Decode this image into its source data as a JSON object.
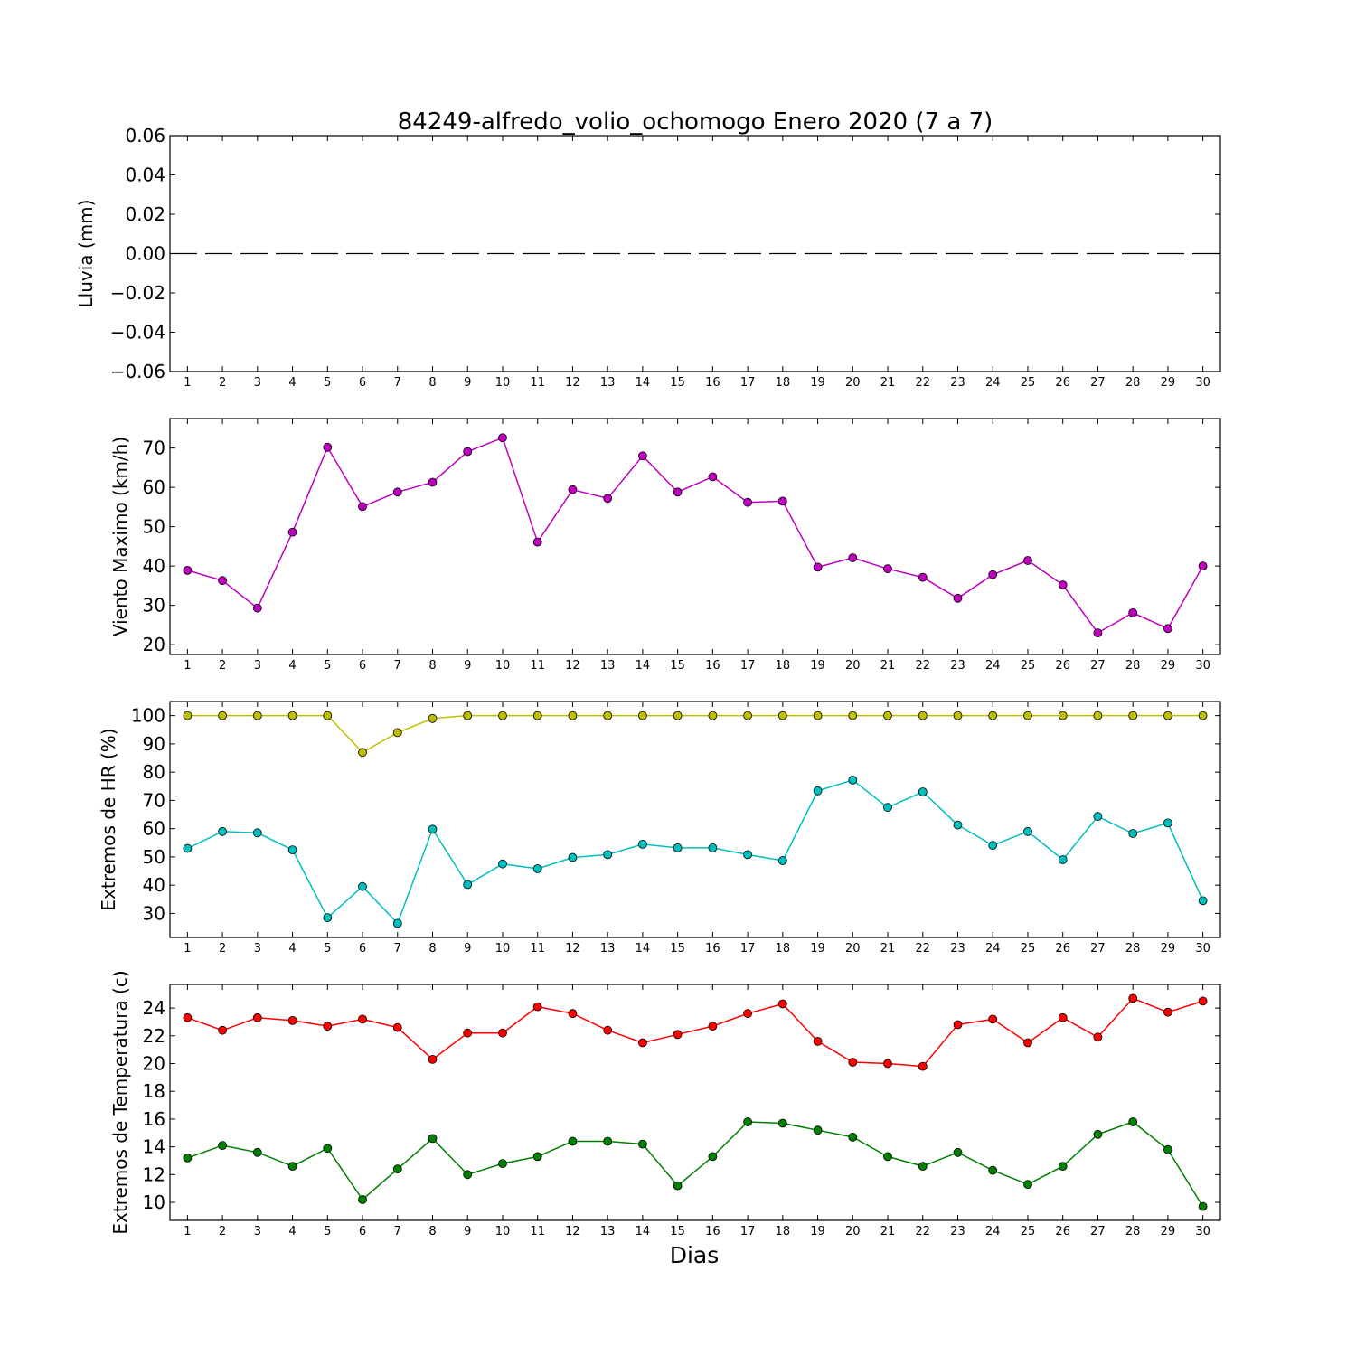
{
  "figure": {
    "title": "84249-alfredo_volio_ochomogo Enero 2020  (7 a 7)",
    "xlabel": "Dias",
    "background": "#ffffff"
  },
  "chart_data": [
    {
      "type": "line",
      "ylabel": "Lluvia (mm)",
      "xlim": [
        0.5,
        30.5
      ],
      "ylim": [
        -0.06,
        0.06
      ],
      "yticks": [
        -0.06,
        -0.04,
        -0.02,
        0.0,
        0.02,
        0.04,
        0.06
      ],
      "ytick_labels": [
        "−0.06",
        "−0.04",
        "−0.02",
        "0.00",
        "0.02",
        "0.04",
        "0.06"
      ],
      "xticks": [
        1,
        2,
        3,
        4,
        5,
        6,
        7,
        8,
        9,
        10,
        11,
        12,
        13,
        14,
        15,
        16,
        17,
        18,
        19,
        20,
        21,
        22,
        23,
        24,
        25,
        26,
        27,
        28,
        29,
        30
      ],
      "grid": false,
      "series": [
        {
          "color": "#000000",
          "style": "dashed",
          "marker": false,
          "x": [
            0.5,
            30.5
          ],
          "values": [
            0,
            0
          ]
        }
      ]
    },
    {
      "type": "line",
      "ylabel": "Viento Maximo (km/h)",
      "xlim": [
        0.5,
        30.5
      ],
      "ylim": [
        17.5,
        77.5
      ],
      "yticks": [
        20,
        30,
        40,
        50,
        60,
        70
      ],
      "ytick_labels": [
        "20",
        "30",
        "40",
        "50",
        "60",
        "70"
      ],
      "xticks": [
        1,
        2,
        3,
        4,
        5,
        6,
        7,
        8,
        9,
        10,
        11,
        12,
        13,
        14,
        15,
        16,
        17,
        18,
        19,
        20,
        21,
        22,
        23,
        24,
        25,
        26,
        27,
        28,
        29,
        30
      ],
      "grid": false,
      "series": [
        {
          "color": "#bf00bf",
          "marker": true,
          "x": [
            1,
            2,
            3,
            4,
            5,
            6,
            7,
            8,
            9,
            10,
            11,
            12,
            13,
            14,
            15,
            16,
            17,
            18,
            19,
            20,
            21,
            22,
            23,
            24,
            25,
            26,
            27,
            28,
            29,
            30
          ],
          "values": [
            38.9,
            36.3,
            29.3,
            48.6,
            70.2,
            55.1,
            58.8,
            61.3,
            69.1,
            72.6,
            46.1,
            59.4,
            57.2,
            68.0,
            58.8,
            62.7,
            56.2,
            56.5,
            39.7,
            42.1,
            39.3,
            37.1,
            31.8,
            37.8,
            41.4,
            35.2,
            23.0,
            28.1,
            24.1,
            40.0
          ]
        }
      ]
    },
    {
      "type": "line",
      "ylabel": "Extremos de HR (%)",
      "xlim": [
        0.5,
        30.5
      ],
      "ylim": [
        21.5,
        105
      ],
      "yticks": [
        30,
        40,
        50,
        60,
        70,
        80,
        90,
        100
      ],
      "ytick_labels": [
        "30",
        "40",
        "50",
        "60",
        "70",
        "80",
        "90",
        "100"
      ],
      "xticks": [
        1,
        2,
        3,
        4,
        5,
        6,
        7,
        8,
        9,
        10,
        11,
        12,
        13,
        14,
        15,
        16,
        17,
        18,
        19,
        20,
        21,
        22,
        23,
        24,
        25,
        26,
        27,
        28,
        29,
        30
      ],
      "grid": false,
      "series": [
        {
          "color": "#bfbf00",
          "marker": true,
          "x": [
            1,
            2,
            3,
            4,
            5,
            6,
            7,
            8,
            9,
            10,
            11,
            12,
            13,
            14,
            15,
            16,
            17,
            18,
            19,
            20,
            21,
            22,
            23,
            24,
            25,
            26,
            27,
            28,
            29,
            30
          ],
          "values": [
            100,
            100,
            100,
            100,
            100,
            87,
            94,
            99,
            100,
            100,
            100,
            100,
            100,
            100,
            100,
            100,
            100,
            100,
            100,
            100,
            100,
            100,
            100,
            100,
            100,
            100,
            100,
            100,
            100,
            100
          ]
        },
        {
          "color": "#00bfbf",
          "marker": true,
          "x": [
            1,
            2,
            3,
            4,
            5,
            6,
            7,
            8,
            9,
            10,
            11,
            12,
            13,
            14,
            15,
            16,
            17,
            18,
            19,
            20,
            21,
            22,
            23,
            24,
            25,
            26,
            27,
            28,
            29,
            30
          ],
          "values": [
            53,
            59,
            58.5,
            52.5,
            28.5,
            39.5,
            26.5,
            59.8,
            40.2,
            47.5,
            45.8,
            49.8,
            50.8,
            54.5,
            53.2,
            53.2,
            50.8,
            48.7,
            73.4,
            77.2,
            67.5,
            73,
            61.3,
            54.1,
            59,
            49,
            64.3,
            58.3,
            62,
            34.5
          ]
        }
      ]
    },
    {
      "type": "line",
      "ylabel": "Extremos de Temperatura (c)",
      "xlim": [
        0.5,
        30.5
      ],
      "ylim": [
        8.7,
        25.7
      ],
      "yticks": [
        10,
        12,
        14,
        16,
        18,
        20,
        22,
        24
      ],
      "ytick_labels": [
        "10",
        "12",
        "14",
        "16",
        "18",
        "20",
        "22",
        "24"
      ],
      "xticks": [
        1,
        2,
        3,
        4,
        5,
        6,
        7,
        8,
        9,
        10,
        11,
        12,
        13,
        14,
        15,
        16,
        17,
        18,
        19,
        20,
        21,
        22,
        23,
        24,
        25,
        26,
        27,
        28,
        29,
        30
      ],
      "grid": false,
      "series": [
        {
          "color": "#ff0000",
          "marker": true,
          "x": [
            1,
            2,
            3,
            4,
            5,
            6,
            7,
            8,
            9,
            10,
            11,
            12,
            13,
            14,
            15,
            16,
            17,
            18,
            19,
            20,
            21,
            22,
            23,
            24,
            25,
            26,
            27,
            28,
            29,
            30
          ],
          "values": [
            23.3,
            22.4,
            23.3,
            23.1,
            22.7,
            23.2,
            22.6,
            20.3,
            22.2,
            22.2,
            24.1,
            23.6,
            22.4,
            21.5,
            22.1,
            22.7,
            23.6,
            24.3,
            21.6,
            20.1,
            20.0,
            19.8,
            22.8,
            23.2,
            21.5,
            23.3,
            21.9,
            24.7,
            23.7,
            24.5
          ]
        },
        {
          "color": "#008000",
          "marker": true,
          "x": [
            1,
            2,
            3,
            4,
            5,
            6,
            7,
            8,
            9,
            10,
            11,
            12,
            13,
            14,
            15,
            16,
            17,
            18,
            19,
            20,
            21,
            22,
            23,
            24,
            25,
            26,
            27,
            28,
            29,
            30
          ],
          "values": [
            13.2,
            14.1,
            13.6,
            12.6,
            13.9,
            10.2,
            12.4,
            14.6,
            12.0,
            12.8,
            13.3,
            14.4,
            14.4,
            14.2,
            11.2,
            13.3,
            15.8,
            15.7,
            15.2,
            14.7,
            13.3,
            12.6,
            13.6,
            12.3,
            11.3,
            12.6,
            14.9,
            15.8,
            13.8,
            9.7
          ]
        }
      ]
    }
  ]
}
